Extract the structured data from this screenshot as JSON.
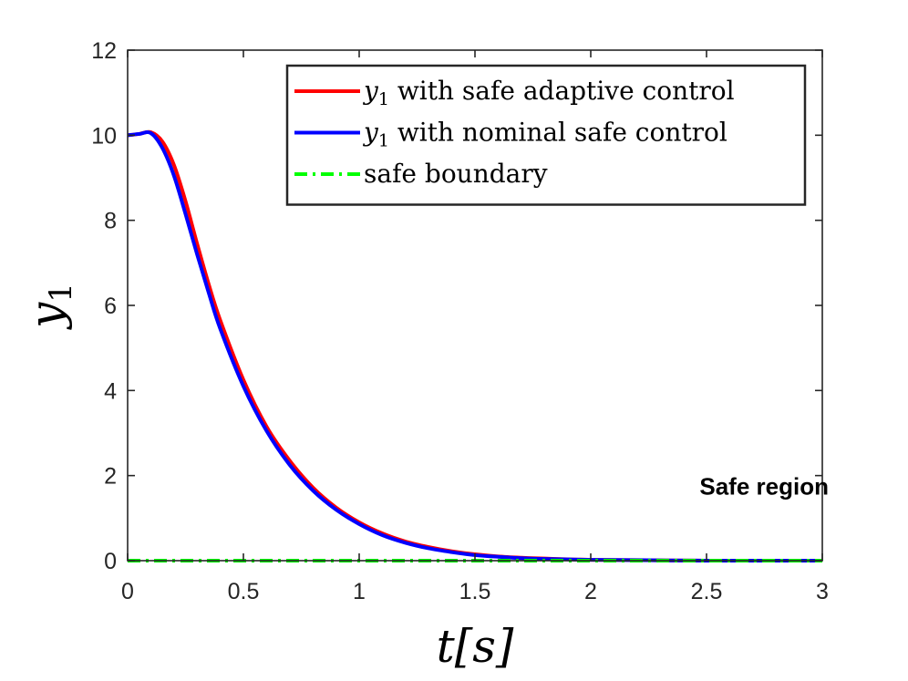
{
  "chart_data": {
    "type": "line",
    "title": "",
    "xlabel": "t[s]",
    "ylabel": "y1",
    "xlim": [
      0,
      3
    ],
    "ylim": [
      0,
      12
    ],
    "xticks": [
      0,
      0.5,
      1,
      1.5,
      2,
      2.5,
      3
    ],
    "xtick_labels": [
      "0",
      "0.5",
      "1",
      "1.5",
      "2",
      "2.5",
      "3"
    ],
    "yticks": [
      0,
      2,
      4,
      6,
      8,
      10,
      12
    ],
    "ytick_labels": [
      "0",
      "2",
      "4",
      "6",
      "8",
      "10",
      "12"
    ],
    "grid": false,
    "legend_position": "top-right",
    "series": [
      {
        "name": "y1 with safe adaptive control",
        "color": "#ff0000",
        "style": "solid",
        "x": [
          0,
          0.05,
          0.1,
          0.15,
          0.2,
          0.25,
          0.3,
          0.35,
          0.4,
          0.5,
          0.6,
          0.7,
          0.8,
          0.9,
          1.0,
          1.1,
          1.2,
          1.3,
          1.4,
          1.5,
          1.6,
          1.7,
          1.8,
          2.0,
          2.25,
          2.5,
          3.0
        ],
        "y": [
          10.0,
          10.03,
          10.07,
          9.85,
          9.3,
          8.45,
          7.45,
          6.5,
          5.65,
          4.25,
          3.15,
          2.35,
          1.72,
          1.25,
          0.9,
          0.64,
          0.45,
          0.32,
          0.22,
          0.15,
          0.1,
          0.07,
          0.05,
          0.02,
          0.01,
          0.0,
          0.0
        ]
      },
      {
        "name": "y1 with nominal safe control",
        "color": "#0000ff",
        "style": "solid",
        "x": [
          0,
          0.05,
          0.1,
          0.15,
          0.2,
          0.25,
          0.3,
          0.35,
          0.4,
          0.5,
          0.6,
          0.7,
          0.8,
          0.9,
          1.0,
          1.1,
          1.2,
          1.3,
          1.4,
          1.5,
          1.6,
          1.7,
          1.8,
          2.0,
          2.25,
          2.5,
          3.0
        ],
        "y": [
          10.0,
          10.03,
          10.05,
          9.7,
          9.05,
          8.15,
          7.2,
          6.3,
          5.45,
          4.1,
          3.05,
          2.25,
          1.65,
          1.2,
          0.86,
          0.6,
          0.42,
          0.29,
          0.2,
          0.13,
          0.09,
          0.06,
          0.04,
          0.02,
          0.01,
          0.0,
          0.0
        ]
      },
      {
        "name": "safe boundary",
        "color": "#00ff00",
        "style": "dashdot",
        "x": [
          0,
          3
        ],
        "y": [
          0,
          0
        ]
      }
    ],
    "annotations": [
      {
        "text": "Safe region",
        "x": 2.47,
        "y": 1.75
      }
    ]
  }
}
